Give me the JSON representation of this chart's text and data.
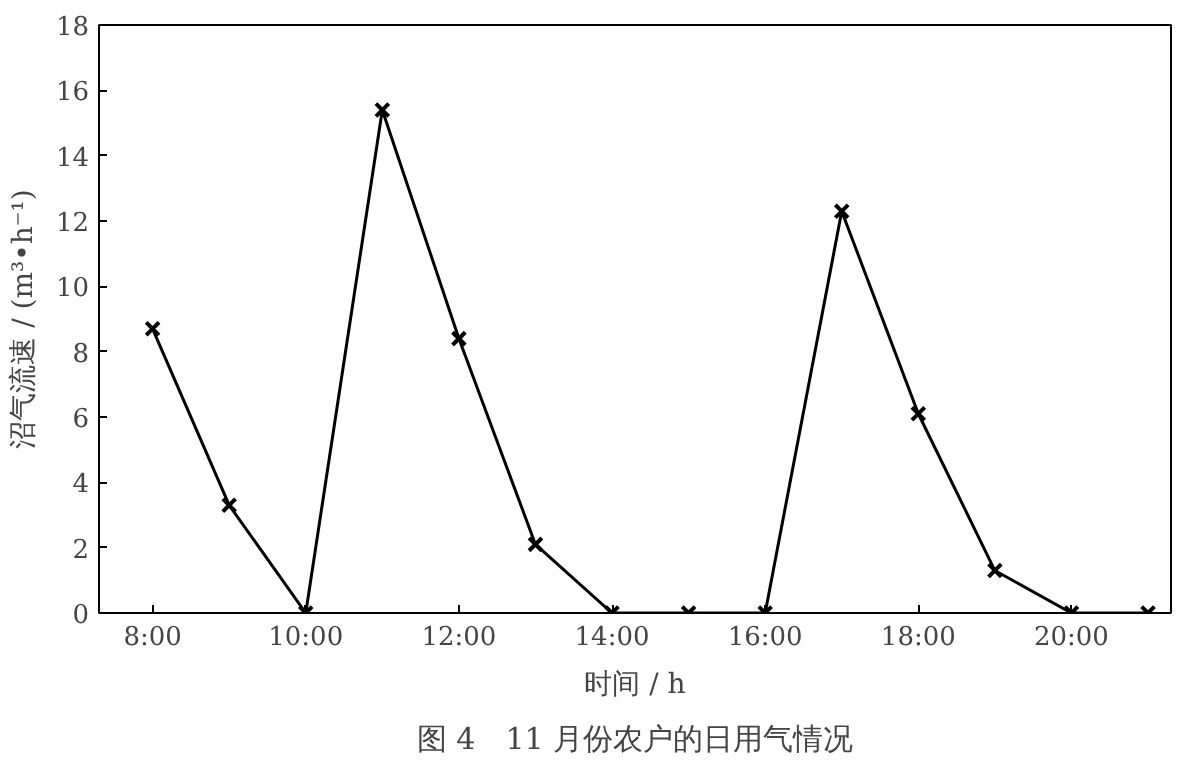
{
  "chart_data": {
    "type": "line",
    "xlabel": "时间 / h",
    "ylabel": "沼气流速 / (m³•h⁻¹)",
    "annotations": [
      "图 4　11 月份农户的日用气情况"
    ],
    "x": [
      8,
      9,
      10,
      11,
      12,
      13,
      14,
      15,
      16,
      17,
      18,
      19,
      20,
      21
    ],
    "series": [
      {
        "color": "#000000",
        "values": [
          8.7,
          3.3,
          0,
          15.4,
          8.4,
          2.1,
          0,
          0,
          0,
          12.3,
          6.1,
          1.3,
          0,
          0
        ]
      }
    ],
    "xlim": [
      7.3,
      21.3
    ],
    "xticks": [
      {
        "value": 8,
        "label": "8:00"
      },
      {
        "value": 10,
        "label": "10:00"
      },
      {
        "value": 12,
        "label": "12:00"
      },
      {
        "value": 14,
        "label": "14:00"
      },
      {
        "value": 16,
        "label": "16:00"
      },
      {
        "value": 18,
        "label": "18:00"
      },
      {
        "value": 20,
        "label": "20:00"
      }
    ],
    "ylim": [
      0,
      18
    ],
    "yticks": [
      0,
      2,
      4,
      6,
      8,
      10,
      12,
      14,
      16,
      18
    ],
    "grid": false,
    "marker": "cross",
    "line_style": "solid"
  }
}
